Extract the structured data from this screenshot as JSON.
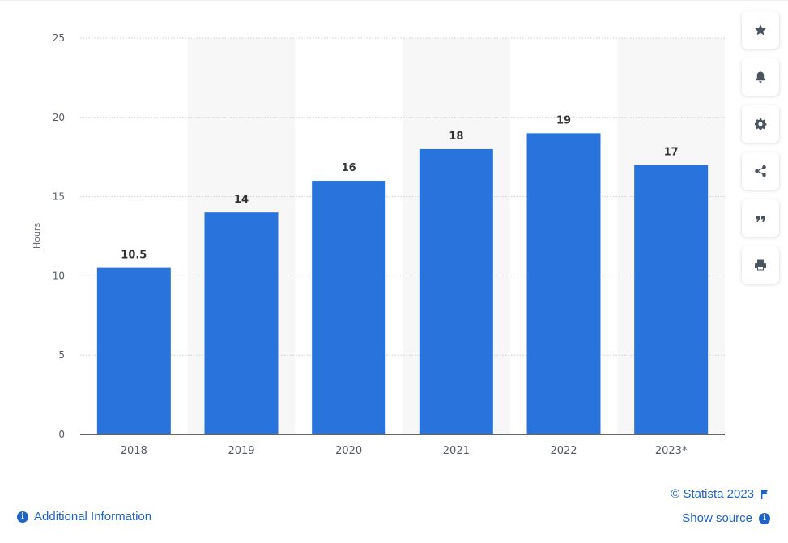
{
  "chart_data": {
    "type": "bar",
    "categories": [
      "2018",
      "2019",
      "2020",
      "2021",
      "2022",
      "2023*"
    ],
    "values": [
      10.5,
      14,
      16,
      18,
      19,
      17
    ],
    "value_labels": [
      "10.5",
      "14",
      "16",
      "18",
      "19",
      "17"
    ],
    "ylabel": "Hours",
    "ylim": [
      0,
      25
    ],
    "yticks": [
      0,
      5,
      10,
      15,
      20,
      25
    ],
    "grid": true,
    "bar_color": "#2874dc",
    "band_color": "#f7f7f8"
  },
  "toolbar": {
    "buttons": [
      "star-icon",
      "bell-icon",
      "gear-icon",
      "share-icon",
      "quote-icon",
      "print-icon"
    ]
  },
  "footer": {
    "additional_info": "Additional Information",
    "copyright": "© Statista 2023",
    "show_source": "Show source"
  }
}
